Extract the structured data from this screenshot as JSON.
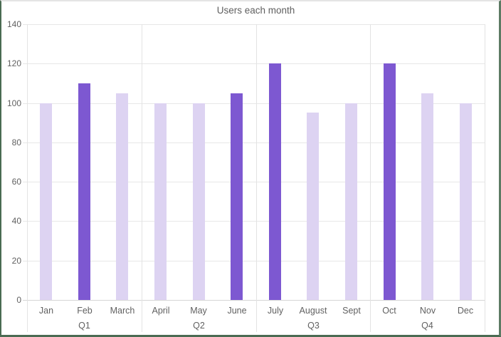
{
  "chart_data": {
    "type": "bar",
    "title": "Users each month",
    "categories": [
      "Jan",
      "Feb",
      "March",
      "April",
      "May",
      "June",
      "July",
      "August",
      "Sept",
      "Oct",
      "Nov",
      "Dec"
    ],
    "values": [
      100,
      110,
      105,
      100,
      100,
      105,
      120,
      95,
      100,
      120,
      105,
      100
    ],
    "highlighted": [
      false,
      true,
      false,
      false,
      false,
      true,
      true,
      false,
      false,
      true,
      false,
      false
    ],
    "group_labels": [
      "Q1",
      "Q2",
      "Q3",
      "Q4"
    ],
    "group_size": 3,
    "ylim": [
      0,
      140
    ],
    "yticks": [
      0,
      20,
      40,
      60,
      80,
      100,
      120,
      140
    ],
    "xlabel": "",
    "ylabel": "",
    "legend": "none",
    "grid": "horizontal",
    "colors": {
      "bar_light": "#ddd3f2",
      "bar_dark": "#7d58d1",
      "gridline": "#e7e7e7",
      "axis_line": "#d6d6d6",
      "separator": "#e3e3e3",
      "text": "#616161",
      "frame_green": "#4a6b52",
      "frame_top": "#e4e4e4"
    }
  }
}
